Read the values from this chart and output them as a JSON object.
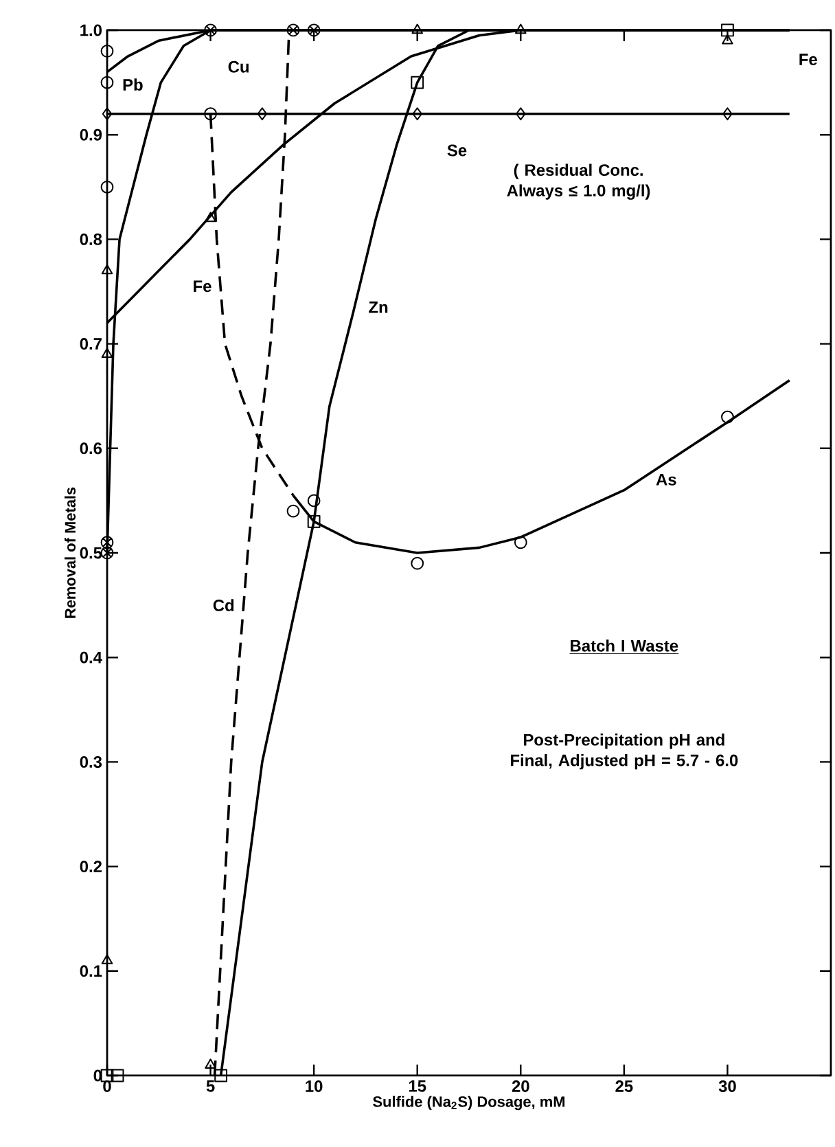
{
  "chart_data": {
    "type": "line",
    "xlabel": "Sulfide (Na$_{2}$S) Dosage, mM",
    "ylabel": "Removal of Metals",
    "xlim": [
      0,
      35
    ],
    "ylim": [
      0,
      1
    ],
    "xticks": [
      0,
      5,
      10,
      15,
      20,
      25,
      30
    ],
    "yticks": [
      0,
      0.1,
      0.2,
      0.3,
      0.4,
      0.5,
      0.6,
      0.7,
      0.8,
      0.9,
      {
        "value": 1,
        "label": "1.0"
      }
    ],
    "grid": false,
    "annotations": [
      "( Residual Conc. Always ≤ 1.0 mg/l)",
      "Batch I Waste",
      "Post-Precipitation pH and Final, Adjusted pH = 5.7 - 6.0"
    ],
    "series": [
      {
        "type": "scatter",
        "color": "#000000",
        "marker": "circle",
        "x": [
          0,
          0
        ],
        "values": [
          0.98,
          0.95
        ]
      },
      {
        "type": "line",
        "name": "Pb",
        "color": "#000000",
        "marker": "none",
        "line_style": "solid",
        "x": [
          0,
          1,
          2.5,
          5,
          33
        ],
        "values": [
          0.96,
          0.975,
          0.99,
          1.0,
          1.0
        ]
      },
      {
        "type": "scatter",
        "color": "#000000",
        "marker": "cross",
        "x": [
          0,
          0,
          5,
          9,
          10
        ],
        "values": [
          0.51,
          0.5,
          1.0,
          1.0,
          1.0
        ]
      },
      {
        "type": "line",
        "name": "Cu",
        "color": "#000000",
        "marker": "none",
        "line_style": "solid",
        "x": [
          0,
          0.3,
          0.6,
          1.9,
          2.6,
          3.7,
          5,
          33
        ],
        "values": [
          0.5,
          0.7,
          0.8,
          0.9,
          0.95,
          0.985,
          1.0,
          1.0
        ]
      },
      {
        "type": "scatter",
        "color": "#000000",
        "marker": "triangle",
        "x": [
          0,
          5,
          15,
          20
        ],
        "values": [
          0.11,
          0.01,
          1.0,
          1.0
        ]
      },
      {
        "type": "line",
        "name": "Cd",
        "color": "#000000",
        "marker": "none",
        "line_style": "dashed",
        "x": [
          5.2,
          6,
          6.8,
          7.3,
          7.9,
          8.3,
          8.6,
          8.8
        ],
        "values": [
          0,
          0.3,
          0.5,
          0.6,
          0.7,
          0.8,
          0.9,
          1.0
        ]
      },
      {
        "type": "scatter",
        "color": "#000000",
        "marker": "square",
        "x": [
          0,
          0.5,
          5.5,
          10,
          15,
          30
        ],
        "values": [
          0,
          0,
          0,
          0.53,
          0.95,
          1.0
        ]
      },
      {
        "type": "line",
        "name": "Zn",
        "color": "#000000",
        "marker": "none",
        "line_style": "solid",
        "x": [
          5.5,
          7.5,
          10,
          10.75,
          11.9,
          13,
          14,
          15,
          16,
          17.5,
          33
        ],
        "values": [
          0,
          0.3,
          0.53,
          0.64,
          0.73,
          0.82,
          0.89,
          0.95,
          0.985,
          1.0,
          1.0
        ]
      },
      {
        "type": "scatter",
        "color": "#000000",
        "marker": "triangle",
        "x": [
          0,
          0,
          5,
          30
        ],
        "values": [
          0.77,
          0.69,
          0.82,
          0.99
        ]
      },
      {
        "type": "line",
        "name": "Fe",
        "color": "#000000",
        "marker": "none",
        "line_style": "solid",
        "x": [
          0,
          2,
          4,
          6,
          8.5,
          11,
          14.7,
          18,
          20,
          33
        ],
        "values": [
          0.72,
          0.76,
          0.8,
          0.845,
          0.89,
          0.93,
          0.975,
          0.995,
          1.0,
          1.0
        ]
      },
      {
        "type": "scatter",
        "color": "#000000",
        "marker": "diamond",
        "x": [
          0,
          7.5,
          15,
          20,
          30
        ],
        "values": [
          0.92,
          0.92,
          0.92,
          0.92,
          0.92
        ]
      },
      {
        "type": "line",
        "name": "Se",
        "color": "#000000",
        "marker": "none",
        "line_style": "solid",
        "x": [
          0,
          33
        ],
        "values": [
          0.92,
          0.92
        ]
      },
      {
        "type": "scatter",
        "color": "#000000",
        "marker": "circle",
        "x": [
          0,
          5,
          9,
          10,
          15,
          20,
          30
        ],
        "values": [
          0.85,
          0.92,
          0.54,
          0.55,
          0.49,
          0.51,
          0.63
        ]
      },
      {
        "type": "line",
        "color": "#000000",
        "marker": "none",
        "line_style": "dashed",
        "x": [
          5,
          5.3,
          5.7,
          6.5,
          7.5,
          9
        ],
        "values": [
          0.92,
          0.8,
          0.7,
          0.65,
          0.6,
          0.555
        ]
      },
      {
        "type": "line",
        "name": "As",
        "color": "#000000",
        "marker": "none",
        "line_style": "solid",
        "x": [
          9,
          10,
          12,
          15,
          18,
          20,
          25,
          30,
          33
        ],
        "values": [
          0.555,
          0.53,
          0.51,
          0.5,
          0.505,
          0.515,
          0.56,
          0.625,
          0.665
        ]
      }
    ]
  }
}
